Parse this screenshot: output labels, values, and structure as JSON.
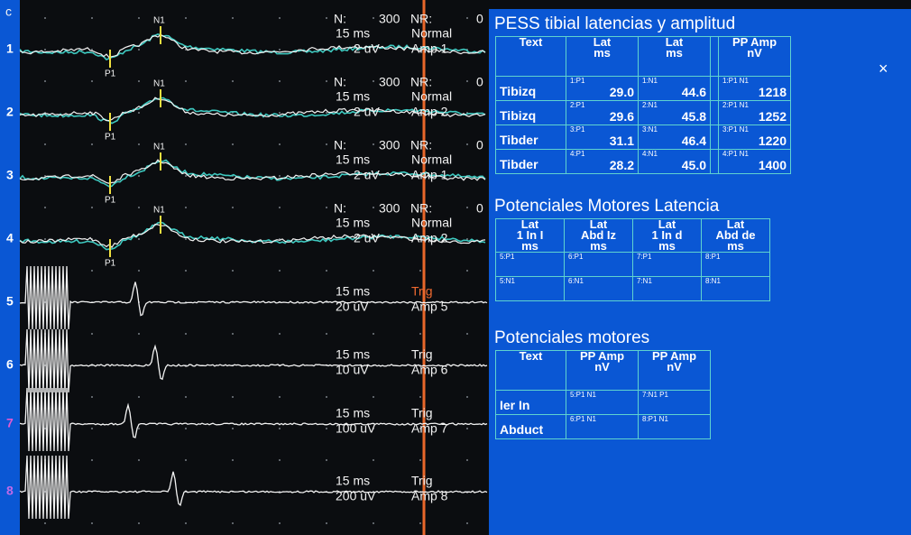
{
  "sidebar_label": "c",
  "channels": [
    {
      "number": "1",
      "n": "N:",
      "n_value": "300",
      "nr": "NR:",
      "nr_value": "0",
      "timebase": "15 ms",
      "mode": "Normal",
      "gain": "2 uV",
      "amp": "Amp 1",
      "peaks": [
        "N1",
        "P1"
      ]
    },
    {
      "number": "2",
      "n": "N:",
      "n_value": "300",
      "nr": "NR:",
      "nr_value": "0",
      "timebase": "15 ms",
      "mode": "Normal",
      "gain": "2 uV",
      "amp": "Amp 2",
      "peaks": [
        "N1",
        "P1"
      ]
    },
    {
      "number": "3",
      "n": "N:",
      "n_value": "300",
      "nr": "NR:",
      "nr_value": "0",
      "timebase": "15 ms",
      "mode": "Normal",
      "gain": "2 uV",
      "amp": "Amp 1",
      "peaks": [
        "N1",
        "P1"
      ]
    },
    {
      "number": "4",
      "n": "N:",
      "n_value": "300",
      "nr": "NR:",
      "nr_value": "0",
      "timebase": "15 ms",
      "mode": "Normal",
      "gain": "2 uV",
      "amp": "Amp 2",
      "peaks": [
        "N1",
        "P1"
      ]
    },
    {
      "number": "5",
      "timebase": "15 ms",
      "mode": "Trig",
      "gain": "20 uV",
      "amp": "Amp 5"
    },
    {
      "number": "6",
      "timebase": "15 ms",
      "mode": "Trig",
      "gain": "10 uV",
      "amp": "Amp 6"
    },
    {
      "number": "7",
      "timebase": "15 ms",
      "mode": "Trig",
      "gain": "100 uV",
      "amp": "Amp 7"
    },
    {
      "number": "8",
      "timebase": "15 ms",
      "mode": "Trig",
      "gain": "200 uV",
      "amp": "Amp 8"
    }
  ],
  "panel": {
    "close": "×",
    "pess": {
      "title": "PESS tibial latencias y amplitud",
      "header": [
        [
          "Text",
          ""
        ],
        [
          "Lat",
          "ms"
        ],
        [
          "Lat",
          "ms"
        ],
        [
          "",
          ""
        ],
        [
          "PP Amp",
          "nV"
        ]
      ],
      "rows": [
        {
          "label": "Tibizq",
          "cells": [
            {
              "tag": "1:P1",
              "value": "29.0"
            },
            {
              "tag": "1:N1",
              "value": "44.6"
            },
            {
              "tag": "1:P1 N1",
              "value": "1218"
            }
          ]
        },
        {
          "label": "Tibizq",
          "cells": [
            {
              "tag": "2:P1",
              "value": "29.6"
            },
            {
              "tag": "2:N1",
              "value": "45.8"
            },
            {
              "tag": "2:P1 N1",
              "value": "1252"
            }
          ]
        },
        {
          "label": "Tibder",
          "cells": [
            {
              "tag": "3:P1",
              "value": "31.1"
            },
            {
              "tag": "3:N1",
              "value": "46.4"
            },
            {
              "tag": "3:P1 N1",
              "value": "1220"
            }
          ]
        },
        {
          "label": "Tibder",
          "cells": [
            {
              "tag": "4:P1",
              "value": "28.2"
            },
            {
              "tag": "4:N1",
              "value": "45.0"
            },
            {
              "tag": "4:P1 N1",
              "value": "1400"
            }
          ]
        }
      ]
    },
    "motor_latency": {
      "title": "Potenciales Motores Latencia",
      "header": [
        [
          "Lat",
          "1 In I",
          "ms"
        ],
        [
          "Lat",
          "Abd Iz",
          "ms"
        ],
        [
          "Lat",
          "1 In d",
          "ms"
        ],
        [
          "Lat",
          "Abd de",
          "ms"
        ]
      ],
      "rows": [
        [
          "5:P1",
          "6:P1",
          "7:P1",
          "8:P1"
        ],
        [
          "5:N1",
          "6:N1",
          "7:N1",
          "8:N1"
        ]
      ]
    },
    "motor_amp": {
      "title": "Potenciales motores",
      "header": [
        [
          "Text",
          ""
        ],
        [
          "PP Amp",
          "nV"
        ],
        [
          "PP Amp",
          "nV"
        ]
      ],
      "rows": [
        {
          "label": "Ier In",
          "cells": [
            "5:P1 N1",
            "7:N1 P1"
          ]
        },
        {
          "label": "Abduct",
          "cells": [
            "6:P1 N1",
            "8:P1 N1"
          ]
        }
      ]
    }
  }
}
